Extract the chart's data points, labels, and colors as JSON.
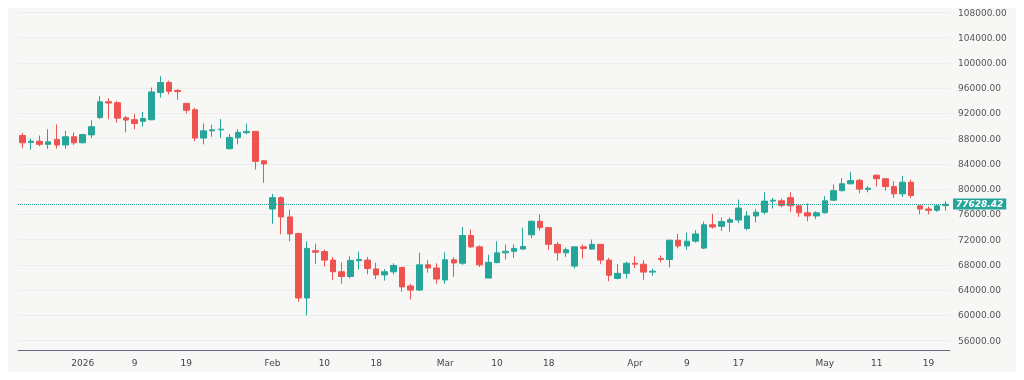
{
  "chart_data": {
    "type": "candlestick",
    "categories": [
      null,
      null,
      null,
      null,
      null,
      null,
      null,
      "2026",
      null,
      null,
      null,
      null,
      null,
      "9",
      null,
      null,
      null,
      null,
      null,
      "19",
      null,
      null,
      null,
      null,
      null,
      null,
      null,
      null,
      null,
      "Feb",
      null,
      null,
      null,
      null,
      null,
      "10",
      null,
      null,
      null,
      null,
      null,
      "18",
      null,
      null,
      null,
      null,
      null,
      null,
      null,
      "Mar",
      null,
      null,
      null,
      null,
      null,
      "10",
      null,
      null,
      null,
      null,
      null,
      "18",
      null,
      null,
      null,
      null,
      null,
      null,
      null,
      null,
      null,
      "Apr",
      null,
      null,
      null,
      null,
      null,
      "9",
      null,
      null,
      null,
      null,
      null,
      "17",
      null,
      null,
      null,
      null,
      null,
      null,
      null,
      null,
      null,
      "May",
      null,
      null,
      null,
      null,
      null,
      "11",
      null,
      null,
      null,
      null,
      null,
      "19",
      null,
      null
    ],
    "ohlc": [
      [
        88500,
        88900,
        86500,
        87350
      ],
      [
        87400,
        88000,
        86250,
        87600
      ],
      [
        87600,
        88500,
        86800,
        87100
      ],
      [
        87100,
        89500,
        86400,
        87500
      ],
      [
        87850,
        90250,
        86400,
        87000
      ],
      [
        87000,
        89250,
        86400,
        88300
      ],
      [
        88300,
        89000,
        87000,
        87350
      ],
      [
        87350,
        88750,
        87250,
        88650
      ],
      [
        88600,
        90900,
        88100,
        89900
      ],
      [
        91350,
        94750,
        91100,
        93850
      ],
      [
        93850,
        94400,
        91100,
        93650
      ],
      [
        93700,
        94000,
        90500,
        91250
      ],
      [
        91300,
        91600,
        89000,
        90950
      ],
      [
        91000,
        91900,
        89500,
        90400
      ],
      [
        90750,
        92250,
        89900,
        91200
      ],
      [
        91000,
        96100,
        90900,
        95400
      ],
      [
        95300,
        97900,
        94500,
        96900
      ],
      [
        96900,
        97200,
        95000,
        95500
      ],
      [
        95650,
        95850,
        94150,
        95450
      ],
      [
        93600,
        93600,
        92000,
        92500
      ],
      [
        92600,
        92900,
        87600,
        88100
      ],
      [
        88100,
        90400,
        87100,
        89250
      ],
      [
        89250,
        90200,
        88300,
        89400
      ],
      [
        89400,
        91100,
        88100,
        89500
      ],
      [
        86400,
        88750,
        86300,
        88200
      ],
      [
        88150,
        89500,
        87100,
        89000
      ],
      [
        88950,
        90400,
        88700,
        89150
      ],
      [
        89150,
        89150,
        83100,
        84400
      ],
      [
        84500,
        84600,
        81000,
        84000
      ],
      [
        76850,
        79250,
        74500,
        78650
      ],
      [
        78650,
        78850,
        72850,
        75600
      ],
      [
        75600,
        76750,
        71750,
        72900
      ],
      [
        72950,
        73100,
        62150,
        62750
      ],
      [
        62750,
        71750,
        60000,
        70600
      ],
      [
        70250,
        71350,
        68150,
        70000
      ],
      [
        70100,
        70400,
        67750,
        68750
      ],
      [
        68750,
        69250,
        65600,
        66900
      ],
      [
        66900,
        68400,
        65000,
        66150
      ],
      [
        66150,
        69350,
        65850,
        68700
      ],
      [
        68650,
        70100,
        67250,
        68850
      ],
      [
        68750,
        69250,
        66500,
        67400
      ],
      [
        67350,
        68350,
        65750,
        66400
      ],
      [
        66400,
        67350,
        65500,
        66900
      ],
      [
        66900,
        68250,
        66500,
        67900
      ],
      [
        67600,
        67600,
        63750,
        64500
      ],
      [
        64650,
        65000,
        62500,
        64000
      ],
      [
        64000,
        69900,
        63900,
        68000
      ],
      [
        68000,
        68750,
        66750,
        67500
      ],
      [
        67500,
        68250,
        65000,
        65750
      ],
      [
        65600,
        70000,
        65000,
        68800
      ],
      [
        68800,
        69250,
        66100,
        68300
      ],
      [
        68250,
        74000,
        68000,
        72650
      ],
      [
        72650,
        73600,
        70650,
        70850
      ],
      [
        70850,
        71100,
        67650,
        68000
      ],
      [
        65900,
        69600,
        65900,
        68400
      ],
      [
        68350,
        71750,
        68250,
        69900
      ],
      [
        69900,
        71250,
        68850,
        70150
      ],
      [
        70150,
        71250,
        69100,
        70600
      ],
      [
        70500,
        73900,
        70400,
        70900
      ],
      [
        72750,
        75000,
        72250,
        74900
      ],
      [
        74900,
        76000,
        73400,
        73900
      ],
      [
        73900,
        73900,
        70400,
        71250
      ],
      [
        71250,
        71600,
        68650,
        69900
      ],
      [
        69900,
        70750,
        69250,
        70400
      ],
      [
        67800,
        70850,
        67400,
        70850
      ],
      [
        70850,
        71250,
        69000,
        70600
      ],
      [
        70500,
        72000,
        70400,
        71250
      ],
      [
        71250,
        71250,
        68100,
        68750
      ],
      [
        68750,
        69100,
        65400,
        66350
      ],
      [
        65850,
        68100,
        65700,
        66650
      ],
      [
        66650,
        68500,
        65850,
        68250
      ],
      [
        68250,
        69350,
        67500,
        68100
      ],
      [
        68100,
        68750,
        65600,
        66850
      ],
      [
        66850,
        67400,
        66250,
        67000
      ],
      [
        69000,
        69500,
        68400,
        68850
      ],
      [
        68850,
        72000,
        67600,
        71900
      ],
      [
        71900,
        72900,
        70600,
        71000
      ],
      [
        71000,
        73100,
        70400,
        71750
      ],
      [
        71750,
        73500,
        71500,
        72900
      ],
      [
        70650,
        74850,
        70500,
        74350
      ],
      [
        74350,
        76100,
        73750,
        74000
      ],
      [
        74100,
        75500,
        73400,
        74850
      ],
      [
        74750,
        75500,
        73250,
        75150
      ],
      [
        75100,
        78350,
        74600,
        77000
      ],
      [
        73750,
        76500,
        73500,
        75750
      ],
      [
        75750,
        76850,
        74750,
        76350
      ],
      [
        76350,
        79500,
        76000,
        78100
      ],
      [
        78100,
        78600,
        76900,
        78250
      ],
      [
        78150,
        78500,
        77150,
        77400
      ],
      [
        78650,
        79500,
        76400,
        77350
      ],
      [
        77350,
        77500,
        75600,
        76250
      ],
      [
        76250,
        77750,
        74900,
        75750
      ],
      [
        75750,
        76500,
        75250,
        76250
      ],
      [
        76250,
        78900,
        76150,
        78150
      ],
      [
        78250,
        80750,
        78100,
        79750
      ],
      [
        79750,
        81750,
        79650,
        80850
      ],
      [
        80850,
        82750,
        80750,
        81350
      ],
      [
        81400,
        81650,
        79350,
        80000
      ],
      [
        79950,
        80500,
        79500,
        80150
      ],
      [
        82200,
        82350,
        80400,
        81650
      ],
      [
        81650,
        81750,
        79750,
        80400
      ],
      [
        80400,
        81250,
        78600,
        79250
      ],
      [
        79250,
        82100,
        78750,
        81100
      ],
      [
        81100,
        81500,
        78600,
        79000
      ],
      [
        77350,
        77500,
        76000,
        76850
      ],
      [
        76850,
        77250,
        76000,
        76650
      ],
      [
        76650,
        77600,
        76400,
        77350
      ],
      [
        77400,
        78100,
        76600,
        77600
      ]
    ],
    "colors": [
      "#ef5350",
      "#26a69a",
      "#ef5350",
      "#26a69a",
      "#ef5350",
      "#26a69a",
      "#ef5350",
      "#26a69a",
      "#26a69a",
      "#26a69a",
      "#ef5350",
      "#ef5350",
      "#ef5350",
      "#ef5350",
      "#26a69a",
      "#26a69a",
      "#26a69a",
      "#ef5350",
      "#ef5350",
      "#ef5350",
      "#ef5350",
      "#26a69a",
      "#26a69a",
      "#26a69a",
      "#26a69a",
      "#26a69a",
      "#26a69a",
      "#ef5350",
      "#ef5350",
      "#26a69a",
      "#ef5350",
      "#ef5350",
      "#ef5350",
      "#26a69a",
      "#ef5350",
      "#ef5350",
      "#ef5350",
      "#ef5350",
      "#26a69a",
      "#26a69a",
      "#ef5350",
      "#ef5350",
      "#26a69a",
      "#26a69a",
      "#ef5350",
      "#ef5350",
      "#26a69a",
      "#ef5350",
      "#ef5350",
      "#26a69a",
      "#ef5350",
      "#26a69a",
      "#ef5350",
      "#ef5350",
      "#26a69a",
      "#26a69a",
      "#26a69a",
      "#26a69a",
      "#26a69a",
      "#26a69a",
      "#ef5350",
      "#ef5350",
      "#ef5350",
      "#26a69a",
      "#26a69a",
      "#ef5350",
      "#26a69a",
      "#ef5350",
      "#ef5350",
      "#26a69a",
      "#26a69a",
      "#ef5350",
      "#ef5350",
      "#26a69a",
      "#ef5350",
      "#26a69a",
      "#ef5350",
      "#26a69a",
      "#26a69a",
      "#26a69a",
      "#ef5350",
      "#26a69a",
      "#26a69a",
      "#26a69a",
      "#26a69a",
      "#26a69a",
      "#26a69a",
      "#26a69a",
      "#ef5350",
      "#ef5350",
      "#ef5350",
      "#ef5350",
      "#26a69a",
      "#26a69a",
      "#26a69a",
      "#26a69a",
      "#26a69a",
      "#ef5350",
      "#26a69a",
      "#ef5350",
      "#ef5350",
      "#ef5350",
      "#26a69a",
      "#ef5350",
      "#ef5350",
      "#ef5350",
      "#26a69a",
      "#26a69a"
    ],
    "ylim": [
      54500,
      108500
    ],
    "yticks": [
      {
        "value": 56000,
        "label": "56000.00"
      },
      {
        "value": 60000,
        "label": "60000.00"
      },
      {
        "value": 64000,
        "label": "64000.00"
      },
      {
        "value": 68000,
        "label": "68000.00"
      },
      {
        "value": 72000,
        "label": "72000.00"
      },
      {
        "value": 76000,
        "label": "76000.00"
      },
      {
        "value": 80000,
        "label": "80000.00"
      },
      {
        "value": 84000,
        "label": "84000.00"
      },
      {
        "value": 88000,
        "label": "88000.00"
      },
      {
        "value": 92000,
        "label": "92000.00"
      },
      {
        "value": 96000,
        "label": "96000.00"
      },
      {
        "value": 100000,
        "label": "100000.00"
      },
      {
        "value": 104000,
        "label": "104000.00"
      },
      {
        "value": 108000,
        "label": "108000.00"
      }
    ],
    "ref_lines": [
      {
        "axis": "y",
        "value": 77628.42,
        "label": "77628.42",
        "color": "#26a69a",
        "line_style": "dotted"
      }
    ],
    "grid": "y"
  }
}
